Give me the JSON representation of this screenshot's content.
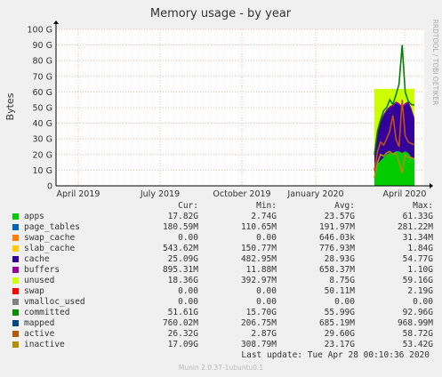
{
  "chart_data": {
    "type": "area",
    "title": "Memory usage - by year",
    "ylabel": "Bytes",
    "watermark": "RRDTOOL / TOBI OETIKER",
    "ylim": [
      0,
      100
    ],
    "yticks": [
      "0",
      "10 G",
      "20 G",
      "30 G",
      "40 G",
      "50 G",
      "60 G",
      "70 G",
      "80 G",
      "90 G",
      "100 G"
    ],
    "xticks": [
      "April 2019",
      "July 2019",
      "October 2019",
      "January 2020",
      "April 2020"
    ],
    "grid": true,
    "series": [
      {
        "name": "apps",
        "color": "#00cc00",
        "values": [
          8,
          14,
          16,
          18,
          20,
          21,
          21,
          22,
          22,
          21,
          22,
          21,
          18,
          17.8
        ]
      },
      {
        "name": "cache",
        "color": "#330099",
        "values": [
          12,
          20,
          25,
          27,
          28,
          29,
          30,
          31,
          30,
          29,
          30,
          32,
          31,
          25.1
        ]
      },
      {
        "name": "buffers",
        "color": "#990099",
        "values": [
          1,
          1,
          1,
          1,
          1,
          1,
          1,
          1,
          1,
          1,
          1,
          1,
          1,
          0.9
        ]
      },
      {
        "name": "unused",
        "color": "#ccff00",
        "values": [
          41,
          27,
          20,
          16,
          13,
          11,
          10,
          8,
          9,
          11,
          9,
          8,
          12,
          18.4
        ]
      },
      {
        "name": "committed",
        "color": "#008000",
        "values": [
          20,
          35,
          42,
          48,
          50,
          55,
          52,
          58,
          65,
          90,
          60,
          54,
          52,
          51.6
        ]
      },
      {
        "name": "active",
        "color": "#c0501a",
        "values": [
          10,
          22,
          28,
          26,
          30,
          35,
          45,
          30,
          25,
          55,
          32,
          28,
          27,
          26.3
        ]
      },
      {
        "name": "inactive",
        "color": "#b08f00",
        "values": [
          5,
          15,
          20,
          19,
          21,
          22,
          20,
          21,
          15,
          8,
          20,
          18,
          18,
          17.1
        ]
      }
    ]
  },
  "legend": {
    "headers": [
      "Cur:",
      "Min:",
      "Avg:",
      "Max:"
    ],
    "rows": [
      {
        "name": "apps",
        "color": "#00cc00",
        "cur": "17.82G",
        "min": "2.74G",
        "avg": "23.57G",
        "max": "61.33G"
      },
      {
        "name": "page_tables",
        "color": "#0066b3",
        "cur": "180.59M",
        "min": "110.65M",
        "avg": "191.97M",
        "max": "281.22M"
      },
      {
        "name": "swap_cache",
        "color": "#ff8000",
        "cur": "0.00",
        "min": "0.00",
        "avg": "646.03k",
        "max": "31.34M"
      },
      {
        "name": "slab_cache",
        "color": "#ffcc00",
        "cur": "543.62M",
        "min": "150.77M",
        "avg": "776.93M",
        "max": "1.84G"
      },
      {
        "name": "cache",
        "color": "#330099",
        "cur": "25.09G",
        "min": "482.95M",
        "avg": "28.93G",
        "max": "54.77G"
      },
      {
        "name": "buffers",
        "color": "#990099",
        "cur": "895.31M",
        "min": "11.88M",
        "avg": "658.37M",
        "max": "1.10G"
      },
      {
        "name": "unused",
        "color": "#ccff00",
        "cur": "18.36G",
        "min": "392.97M",
        "avg": "8.75G",
        "max": "59.16G"
      },
      {
        "name": "swap",
        "color": "#ff0000",
        "cur": "0.00",
        "min": "0.00",
        "avg": "50.11M",
        "max": "2.19G"
      },
      {
        "name": "vmalloc_used",
        "color": "#808080",
        "cur": "0.00",
        "min": "0.00",
        "avg": "0.00",
        "max": "0.00"
      },
      {
        "name": "committed",
        "color": "#008f00",
        "cur": "51.61G",
        "min": "15.70G",
        "avg": "55.99G",
        "max": "92.96G"
      },
      {
        "name": "mapped",
        "color": "#00487d",
        "cur": "760.02M",
        "min": "206.75M",
        "avg": "685.19M",
        "max": "968.99M"
      },
      {
        "name": "active",
        "color": "#b35a00",
        "cur": "26.32G",
        "min": "2.87G",
        "avg": "29.60G",
        "max": "58.72G"
      },
      {
        "name": "inactive",
        "color": "#b38f00",
        "cur": "17.09G",
        "min": "308.79M",
        "avg": "23.17G",
        "max": "53.42G"
      }
    ]
  },
  "last_update": "Last update: Tue Apr 28 00:10:36 2020",
  "footer": "Munin 2.0.37-1ubuntu0.1"
}
